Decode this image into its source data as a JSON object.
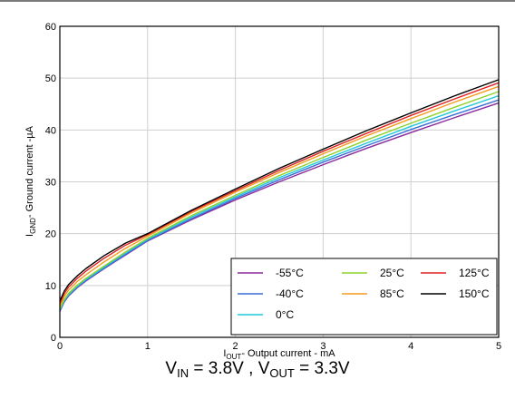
{
  "chart_data": {
    "type": "line",
    "title": "",
    "xlabel": {
      "main": "I",
      "sub": "OUT",
      "rest": "- Output current - mA"
    },
    "ylabel": {
      "main": "I",
      "sub": "GND",
      "rest": "- Ground current -µA"
    },
    "xlim": [
      0,
      5
    ],
    "ylim": [
      0,
      60
    ],
    "xticks": [
      "0",
      "1",
      "2",
      "3",
      "4",
      "5"
    ],
    "yticks": [
      "0",
      "10",
      "20",
      "30",
      "40",
      "50",
      "60"
    ],
    "grid": true,
    "legend_position": "bottom-right",
    "x": [
      0,
      0.05,
      0.1,
      0.2,
      0.3,
      0.5,
      0.75,
      1,
      1.5,
      2,
      2.5,
      3,
      3.5,
      4,
      4.5,
      5
    ],
    "series": [
      {
        "name": "-55°C",
        "color": "#8b2a9b",
        "values": [
          5.0,
          6.8,
          8.0,
          9.6,
          10.9,
          13.2,
          15.9,
          18.6,
          22.7,
          26.5,
          30.0,
          33.3,
          36.5,
          39.5,
          42.4,
          45.2
        ]
      },
      {
        "name": "-40°C",
        "color": "#3a6fd8",
        "values": [
          5.1,
          6.9,
          8.1,
          9.7,
          11.0,
          13.3,
          16.0,
          18.7,
          22.9,
          26.8,
          30.4,
          33.8,
          37.0,
          40.1,
          43.0,
          45.8
        ]
      },
      {
        "name": "0°C",
        "color": "#1fc8d8",
        "values": [
          5.3,
          7.1,
          8.3,
          9.9,
          11.2,
          13.5,
          16.3,
          18.9,
          23.2,
          27.1,
          30.8,
          34.2,
          37.5,
          40.7,
          43.7,
          46.6
        ]
      },
      {
        "name": "25°C",
        "color": "#8dd12a",
        "values": [
          5.5,
          7.3,
          8.5,
          10.1,
          11.4,
          13.7,
          16.5,
          19.1,
          23.5,
          27.4,
          31.2,
          34.7,
          38.1,
          41.3,
          44.4,
          47.4
        ]
      },
      {
        "name": "85°C",
        "color": "#f39c1e",
        "values": [
          6.0,
          7.9,
          9.1,
          10.8,
          12.1,
          14.5,
          17.2,
          19.5,
          24.0,
          28.0,
          31.8,
          35.4,
          38.9,
          42.2,
          45.4,
          48.4
        ]
      },
      {
        "name": "125°C",
        "color": "#e02424",
        "values": [
          6.5,
          8.4,
          9.7,
          11.4,
          12.8,
          15.2,
          17.8,
          19.8,
          24.3,
          28.3,
          32.2,
          35.9,
          39.4,
          42.8,
          46.0,
          49.1
        ]
      },
      {
        "name": "150°C",
        "color": "#000000",
        "values": [
          7.0,
          8.9,
          10.2,
          11.9,
          13.3,
          15.7,
          18.2,
          20.0,
          24.5,
          28.6,
          32.6,
          36.3,
          39.9,
          43.3,
          46.6,
          49.7
        ]
      }
    ]
  },
  "caption": {
    "v_in": "V",
    "v_in_sub": "IN",
    "v_in_val": " = 3.8V",
    "sep": " , ",
    "v_out": "V",
    "v_out_sub": "OUT",
    "v_out_val": " = 3.3V"
  }
}
